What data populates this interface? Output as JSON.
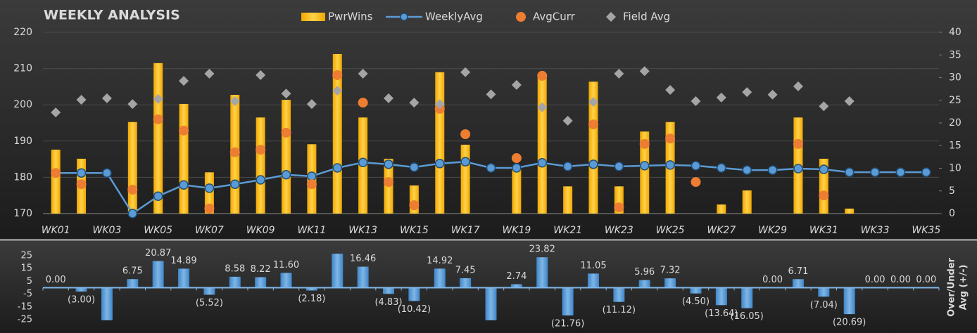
{
  "chart_data": [
    {
      "type": "combo",
      "title": "WEEKLY ANALYSIS",
      "categories": [
        "WK01",
        null,
        "WK03",
        null,
        "WK05",
        null,
        "WK07",
        null,
        "WK09",
        null,
        "WK11",
        null,
        "WK13",
        null,
        "WK15",
        null,
        "WK17",
        null,
        "WK19",
        null,
        "WK21",
        null,
        "WK23",
        null,
        "WK25",
        null,
        "WK27",
        null,
        "WK29",
        null,
        "WK31",
        null,
        "WK33",
        null,
        "WK35"
      ],
      "ylim": [
        170,
        220
      ],
      "yticks": [
        170,
        180,
        190,
        200,
        210,
        220
      ],
      "y2lim": [
        0,
        40
      ],
      "y2ticks": [
        0,
        5,
        10,
        15,
        20,
        25,
        30,
        35,
        40
      ],
      "grid": true,
      "legend": "top",
      "series": [
        {
          "name": "PwrWins",
          "type": "bar",
          "axis": "y2",
          "color": "#ffc000",
          "values": [
            14.1,
            12.1,
            0,
            20.2,
            33.2,
            24.2,
            9.1,
            26.2,
            21.2,
            25.1,
            15.3,
            35.2,
            21.2,
            12.1,
            6.2,
            31.2,
            15.2,
            0,
            9.9,
            30.9,
            6.0,
            29.1,
            6.0,
            18.1,
            20.2,
            0,
            2.0,
            5.1,
            0,
            21.2,
            12.1,
            1.1,
            0,
            0,
            0
          ]
        },
        {
          "name": "WeeklyAvg",
          "type": "line",
          "marker": "circle",
          "color": "#5b9bd5",
          "values": [
            181.2,
            181.2,
            181.2,
            170.0,
            174.8,
            177.9,
            177.0,
            178.1,
            179.3,
            180.7,
            180.3,
            182.6,
            184.1,
            183.6,
            182.8,
            183.8,
            184.3,
            182.6,
            182.6,
            184.0,
            183.0,
            183.6,
            183.0,
            183.2,
            183.4,
            183.2,
            182.6,
            182.0,
            182.0,
            182.4,
            182.2,
            181.4,
            181.4,
            181.4,
            181.4
          ]
        },
        {
          "name": "AvgCurr",
          "type": "scatter",
          "marker": "circle",
          "color": "#ed7d31",
          "values": [
            181.2,
            178.1,
            null,
            176.6,
            196.0,
            192.9,
            171.4,
            186.9,
            187.6,
            192.3,
            178.1,
            208.2,
            200.6,
            178.7,
            172.3,
            198.9,
            191.9,
            null,
            185.3,
            208.0,
            null,
            194.6,
            171.7,
            189.2,
            190.7,
            178.7,
            null,
            null,
            null,
            189.2,
            175.0,
            null,
            null,
            null,
            null
          ]
        },
        {
          "name": "Field Avg",
          "type": "scatter",
          "marker": "diamond",
          "color": "#a5a5a5",
          "values": [
            197.9,
            201.4,
            201.8,
            200.2,
            201.6,
            206.6,
            208.6,
            201.0,
            208.2,
            203.1,
            200.2,
            203.9,
            208.6,
            201.8,
            200.6,
            200.2,
            209.0,
            202.9,
            205.5,
            199.3,
            195.6,
            200.8,
            208.6,
            209.3,
            204.1,
            201.0,
            202.0,
            203.5,
            202.8,
            205.1,
            199.6,
            201.0,
            null,
            null,
            null
          ]
        }
      ]
    },
    {
      "type": "bar",
      "ylabel": [
        "Over/Under",
        "Avg (+/-)"
      ],
      "color": "#5b9bd5",
      "ylim": [
        -27,
        27
      ],
      "yticks": [
        25,
        15,
        5,
        -5,
        -15,
        -25
      ],
      "values": [
        0,
        -3.0,
        -25.5,
        6.75,
        20.87,
        14.89,
        -5.52,
        8.58,
        8.22,
        11.6,
        -2.18,
        26.6,
        16.46,
        -4.83,
        -10.42,
        14.92,
        7.45,
        -25.5,
        2.74,
        23.82,
        -21.76,
        11.05,
        -11.12,
        5.96,
        7.32,
        -4.5,
        -13.64,
        -16.05,
        0,
        6.71,
        -7.04,
        -20.69,
        0,
        0,
        0
      ],
      "value_labels": [
        "0.00",
        "(3.00)",
        null,
        "6.75",
        "20.87",
        "14.89",
        "(5.52)",
        "8.58",
        "8.22",
        "11.60",
        "(2.18)",
        null,
        "16.46",
        "(4.83)",
        "(10.42)",
        "14.92",
        "7.45",
        null,
        "2.74",
        "23.82",
        "(21.76)",
        "11.05",
        "(11.12)",
        "5.96",
        "7.32",
        "(4.50)",
        "(13.64)",
        "(16.05)",
        "0.00",
        "6.71",
        "(7.04)",
        "(20.69)",
        "0.00",
        "0.00",
        "0.00"
      ]
    }
  ]
}
